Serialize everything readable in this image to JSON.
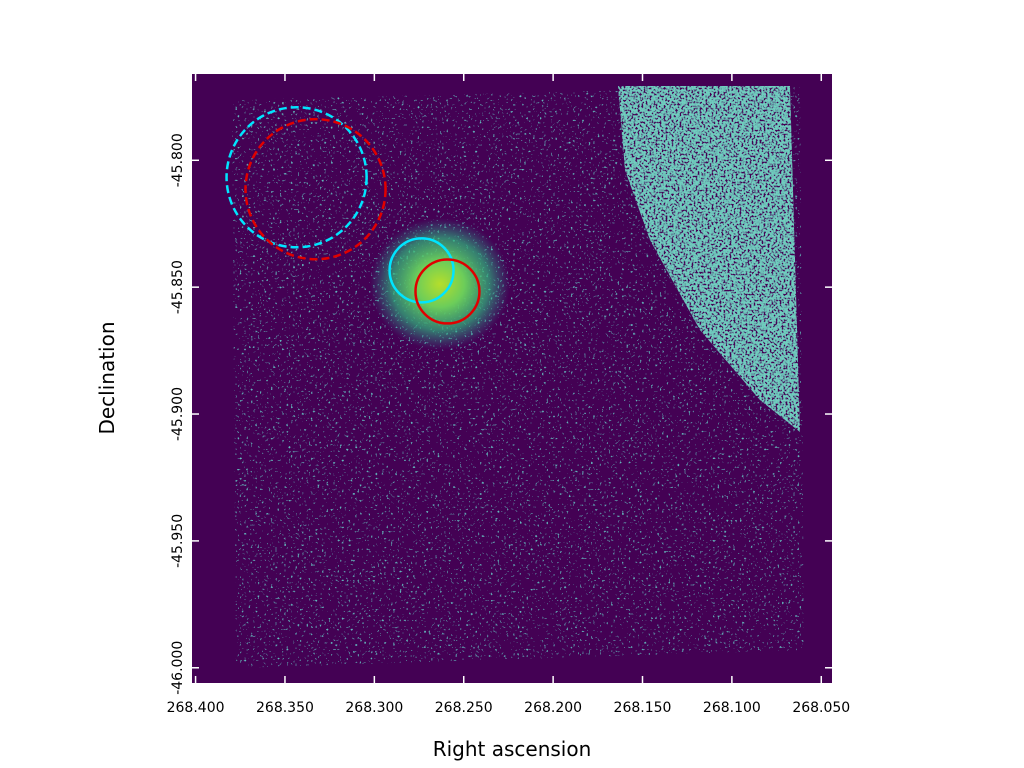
{
  "chart_data": {
    "type": "image",
    "x_label": "Right ascension",
    "y_label": "Declination",
    "xlim": [
      268.402,
      268.044
    ],
    "ylim": [
      -46.006,
      -45.766
    ],
    "xticks": [
      {
        "value": 268.4,
        "label": "268.400"
      },
      {
        "value": 268.35,
        "label": "268.350"
      },
      {
        "value": 268.3,
        "label": "268.300"
      },
      {
        "value": 268.25,
        "label": "268.250"
      },
      {
        "value": 268.2,
        "label": "268.200"
      },
      {
        "value": 268.15,
        "label": "268.150"
      },
      {
        "value": 268.1,
        "label": "268.100"
      },
      {
        "value": 268.05,
        "label": "268.050"
      }
    ],
    "yticks": [
      {
        "value": -45.8,
        "label": "-45.800"
      },
      {
        "value": -45.85,
        "label": "-45.850"
      },
      {
        "value": -45.9,
        "label": "-45.900"
      },
      {
        "value": -45.95,
        "label": "-45.950"
      },
      {
        "value": -46.0,
        "label": "-46.000"
      }
    ],
    "regions": [
      {
        "ra": 268.3435,
        "dec": -45.8067,
        "radius": 0.0276,
        "color": "#00e5ff",
        "style": "dashed"
      },
      {
        "ra": 268.3329,
        "dec": -45.8114,
        "radius": 0.0276,
        "color": "#e00000",
        "style": "dashed"
      },
      {
        "ra": 268.2736,
        "dec": -45.8434,
        "radius": 0.0126,
        "color": "#00e5ff",
        "style": "solid"
      },
      {
        "ra": 268.2591,
        "dec": -45.8517,
        "radius": 0.0126,
        "color": "#e00000",
        "style": "solid"
      }
    ]
  }
}
